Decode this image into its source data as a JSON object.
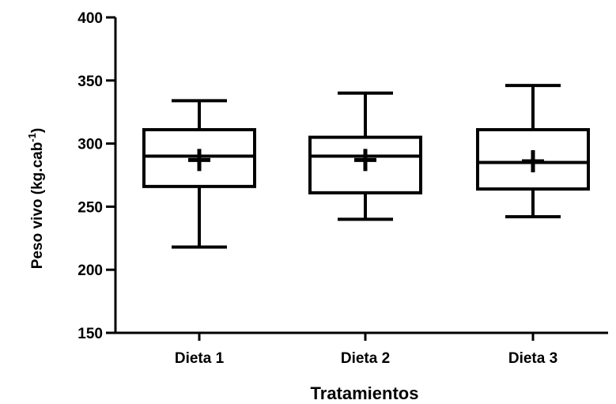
{
  "chart_data": {
    "type": "box",
    "xlabel": "Tratamientos",
    "ylabel": {
      "base": "Peso vivo (kg.cab",
      "superscript": "-1",
      "close": ")"
    },
    "ylim": [
      150,
      400
    ],
    "yticks": [
      150,
      200,
      250,
      300,
      350,
      400
    ],
    "ytick_labels": [
      "150",
      "200",
      "250",
      "300",
      "350",
      "400"
    ],
    "categories": [
      "Dieta 1",
      "Dieta 2",
      "Dieta 3"
    ],
    "boxes": [
      {
        "category": "Dieta 1",
        "min": 218,
        "q1": 266,
        "median": 290,
        "q3": 311,
        "max": 334,
        "mean": 287
      },
      {
        "category": "Dieta 2",
        "min": 240,
        "q1": 261,
        "median": 290,
        "q3": 305,
        "max": 340,
        "mean": 287
      },
      {
        "category": "Dieta 3",
        "min": 242,
        "q1": 264,
        "median": 285,
        "q3": 311,
        "max": 346,
        "mean": 286
      }
    ],
    "grid": false,
    "legend": "none",
    "colors": {
      "stroke": "#000000",
      "fill": "#ffffff"
    }
  }
}
